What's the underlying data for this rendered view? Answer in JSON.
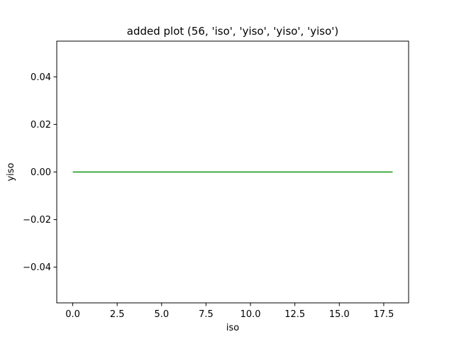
{
  "chart_data": {
    "type": "line",
    "title": "added plot (56, 'iso', 'yiso', 'yiso', 'yiso')",
    "xlabel": "iso",
    "ylabel": "yiso",
    "xlim": [
      -0.9,
      18.9
    ],
    "ylim": [
      -0.055,
      0.055
    ],
    "grid": false,
    "x_ticks": [
      {
        "value": 0.0,
        "label": "0.0"
      },
      {
        "value": 2.5,
        "label": "2.5"
      },
      {
        "value": 5.0,
        "label": "5.0"
      },
      {
        "value": 7.5,
        "label": "7.5"
      },
      {
        "value": 10.0,
        "label": "10.0"
      },
      {
        "value": 12.5,
        "label": "12.5"
      },
      {
        "value": 15.0,
        "label": "15.0"
      },
      {
        "value": 17.5,
        "label": "17.5"
      }
    ],
    "y_ticks": [
      {
        "value": 0.04,
        "label": "0.04"
      },
      {
        "value": 0.02,
        "label": "0.02"
      },
      {
        "value": 0.0,
        "label": "0.00"
      },
      {
        "value": -0.02,
        "label": "−0.02"
      },
      {
        "value": -0.04,
        "label": "−0.04"
      }
    ],
    "series": [
      {
        "color": "#2ca02c",
        "x": [
          0,
          1,
          2,
          3,
          4,
          5,
          6,
          7,
          8,
          9,
          10,
          11,
          12,
          13,
          14,
          15,
          16,
          17,
          18
        ],
        "y": [
          0,
          0,
          0,
          0,
          0,
          0,
          0,
          0,
          0,
          0,
          0,
          0,
          0,
          0,
          0,
          0,
          0,
          0,
          0
        ]
      }
    ]
  }
}
